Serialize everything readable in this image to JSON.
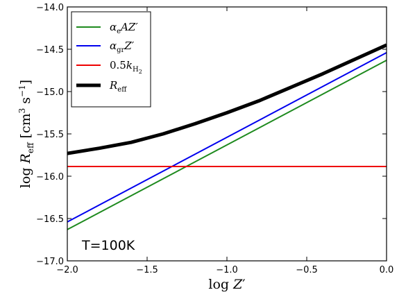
{
  "chart_data": {
    "type": "line",
    "xlabel": "log Z′",
    "ylabel": "log R_eff [cm³ s⁻¹]",
    "xlim": [
      -2.0,
      0.0
    ],
    "ylim": [
      -17.0,
      -14.0
    ],
    "xticks": [
      "−2.0",
      "−1.5",
      "−1.0",
      "−0.5",
      "0.0"
    ],
    "yticks": [
      "−14.0",
      "−14.5",
      "−15.0",
      "−15.5",
      "−16.0",
      "−16.5",
      "−17.0"
    ],
    "annotation": "T=100K",
    "legend_position": "upper-left",
    "grid": false,
    "series": [
      {
        "name": "α_e A Z′",
        "color": "#1e8a1e",
        "width": 2,
        "x": [
          -2.0,
          0.0
        ],
        "y": [
          -16.63,
          -14.63
        ]
      },
      {
        "name": "α_gr Z′",
        "color": "#0000ee",
        "width": 2,
        "x": [
          -2.0,
          0.0
        ],
        "y": [
          -16.54,
          -14.54
        ]
      },
      {
        "name": "0.5 k_H₂",
        "color": "#ee0000",
        "width": 2,
        "x": [
          -2.0,
          0.0
        ],
        "y": [
          -15.885,
          -15.885
        ]
      },
      {
        "name": "R_eff",
        "color": "#000000",
        "width": 5,
        "x": [
          -2.0,
          -1.8,
          -1.6,
          -1.4,
          -1.2,
          -1.0,
          -0.8,
          -0.6,
          -0.4,
          -0.2,
          0.0
        ],
        "y": [
          -15.73,
          -15.67,
          -15.6,
          -15.5,
          -15.38,
          -15.25,
          -15.11,
          -14.95,
          -14.79,
          -14.62,
          -14.45
        ]
      }
    ]
  }
}
